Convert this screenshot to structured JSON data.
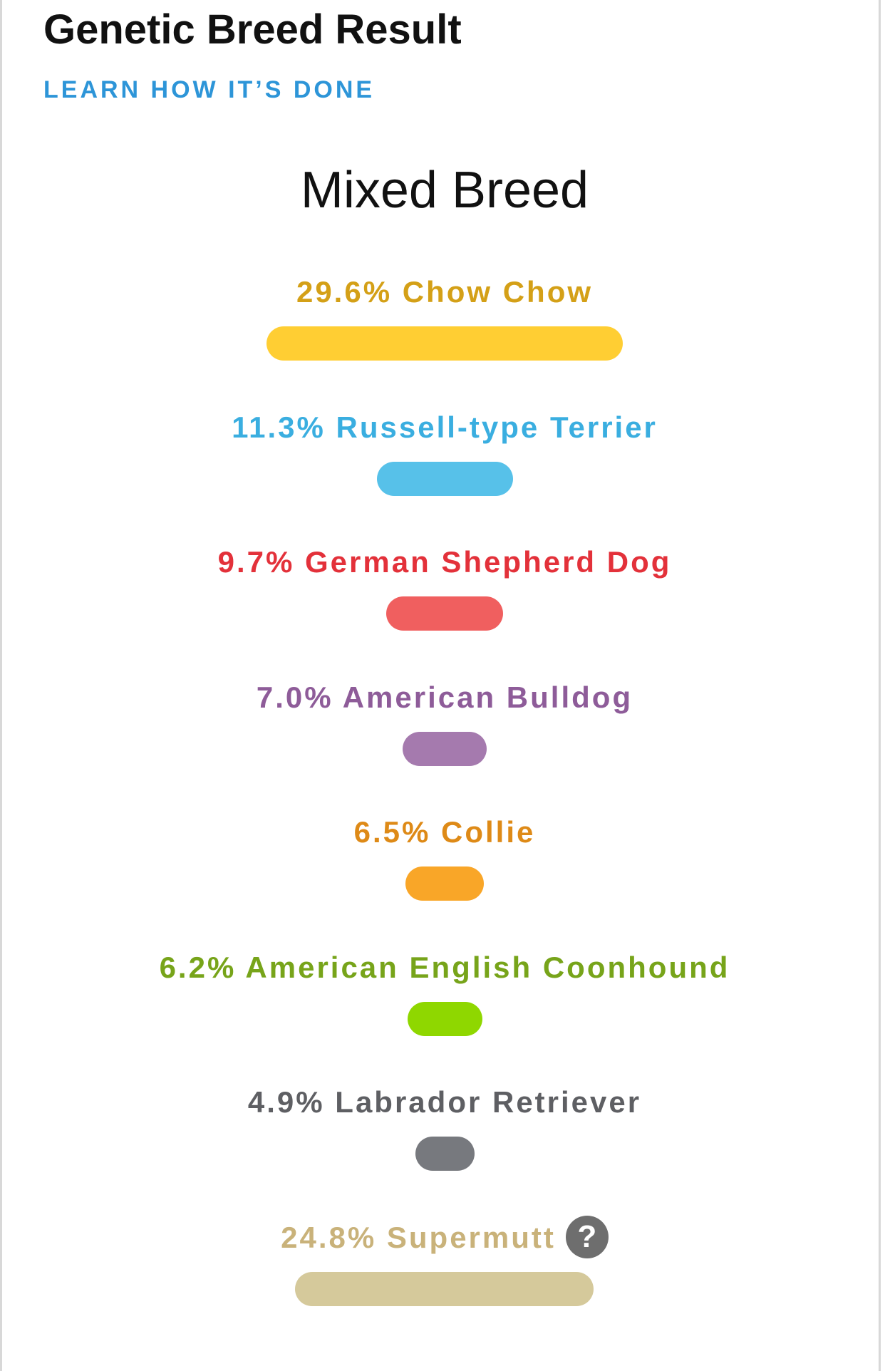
{
  "header": {
    "title": "Genetic Breed Result",
    "learn_link": "LEARN HOW IT’S DONE"
  },
  "result": {
    "mix_type": "Mixed Breed"
  },
  "breeds": [
    {
      "label": "29.6% Chow Chow",
      "percent": 29.6,
      "text_color": "#d4a017",
      "bar_color": "#ffce33"
    },
    {
      "label": "11.3% Russell-type Terrier",
      "percent": 11.3,
      "text_color": "#3aaee0",
      "bar_color": "#57c1e9"
    },
    {
      "label": "9.7% German Shepherd Dog",
      "percent": 9.7,
      "text_color": "#e3313a",
      "bar_color": "#f05f5f"
    },
    {
      "label": "7.0% American Bulldog",
      "percent": 7.0,
      "text_color": "#8e5c99",
      "bar_color": "#a57aae"
    },
    {
      "label": "6.5% Collie",
      "percent": 6.5,
      "text_color": "#de8a17",
      "bar_color": "#f9a628"
    },
    {
      "label": "6.2% American English Coonhound",
      "percent": 6.2,
      "text_color": "#77a41a",
      "bar_color": "#8fd700"
    },
    {
      "label": "4.9% Labrador Retriever",
      "percent": 4.9,
      "text_color": "#5e5f63",
      "bar_color": "#77797e"
    },
    {
      "label": "24.8% Supermutt",
      "percent": 24.8,
      "text_color": "#c9b27a",
      "bar_color": "#d5c99b",
      "help_icon": "question-circle-icon",
      "help_glyph": "?"
    }
  ]
}
